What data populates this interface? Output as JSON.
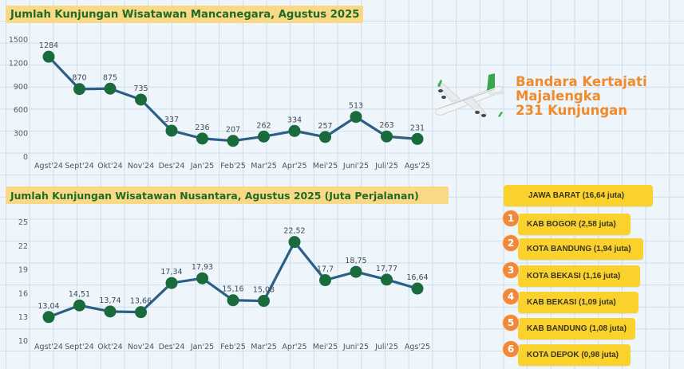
{
  "colors": {
    "line": "#2b5f86",
    "marker": "#1a6b3c",
    "title_bg": "#f9d985",
    "title_text": "#1f6b26",
    "airport_text": "#f08a2a",
    "pill_bg": "#fbd22c",
    "badge_bg": "#ef8a3c"
  },
  "chart_data": [
    {
      "type": "line",
      "title": "Jumlah Kunjungan Wisatawan Mancanegara, Agustus 2025",
      "xlabel": "",
      "ylabel": "",
      "categories": [
        "Agst'24",
        "Sept'24",
        "Okt'24",
        "Nov'24",
        "Des'24",
        "Jan'25",
        "Feb'25",
        "Mar'25",
        "Apr'25",
        "Mei'25",
        "Juni'25",
        "Juli'25",
        "Ags'25"
      ],
      "values": [
        1284,
        870,
        875,
        735,
        337,
        236,
        207,
        262,
        334,
        257,
        513,
        263,
        231
      ],
      "value_labels": [
        "1284",
        "870",
        "875",
        "735",
        "337",
        "236",
        "207",
        "262",
        "334",
        "257",
        "513",
        "263",
        "231"
      ],
      "yticks": [
        0,
        300,
        600,
        900,
        1200,
        1500
      ],
      "ylim": [
        0,
        1500
      ],
      "grid": true,
      "legend": null
    },
    {
      "type": "line",
      "title": "Jumlah Kunjungan Wisatawan Nusantara, Agustus 2025 (Juta Perjalanan)",
      "xlabel": "",
      "ylabel": "Juta Perjalanan",
      "categories": [
        "Agst'24",
        "Sept'24",
        "Okt'24",
        "Nov'24",
        "Des'24",
        "Jan'25",
        "Feb'25",
        "Mar'25",
        "Apr'25",
        "Mei'25",
        "Juni'25",
        "Juli'25",
        "Ags'25"
      ],
      "values": [
        13.04,
        14.51,
        13.74,
        13.66,
        17.34,
        17.93,
        15.16,
        15.08,
        22.52,
        17.7,
        18.75,
        17.77,
        16.64
      ],
      "value_labels": [
        "13,04",
        "14,51",
        "13,74",
        "13,66",
        "17,34",
        "17,93",
        "15,16",
        "15,08",
        "22,52",
        "17,7",
        "18,75",
        "17,77",
        "16,64"
      ],
      "yticks": [
        10,
        13,
        16,
        19,
        22,
        25
      ],
      "ylim": [
        10,
        25
      ],
      "grid": true,
      "legend": null
    }
  ],
  "airport": {
    "icon": "airplane-icon",
    "lines": [
      "Bandara Kertajati",
      "Majalengka",
      "231 Kunjungan"
    ]
  },
  "regions": {
    "header": "JAWA BARAT (16,64 juta)",
    "items": [
      {
        "rank": "1",
        "label": "KAB BOGOR (2,58 juta)"
      },
      {
        "rank": "2",
        "label": "KOTA BANDUNG (1,94 juta)"
      },
      {
        "rank": "3",
        "label": "KOTA BEKASI (1,16 juta)"
      },
      {
        "rank": "4",
        "label": "KAB BEKASI (1,09 juta)"
      },
      {
        "rank": "5",
        "label": "KAB BANDUNG (1,08 juta)"
      },
      {
        "rank": "6",
        "label": "KOTA DEPOK (0,98 juta)"
      }
    ]
  }
}
